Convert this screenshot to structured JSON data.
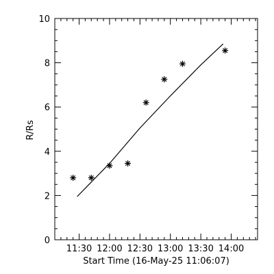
{
  "chart_data": {
    "type": "scatter",
    "xlabel": "Start Time (16-May-25 11:06:07)",
    "ylabel": "R/Rs",
    "xlim": [
      "11:06",
      "14:26"
    ],
    "ylim": [
      0,
      10
    ],
    "grid": false,
    "x_ticks": [
      "11:30",
      "12:00",
      "12:30",
      "13:00",
      "13:30",
      "14:00"
    ],
    "y_ticks": [
      "0",
      "2",
      "4",
      "6",
      "8",
      "10"
    ],
    "series": [
      {
        "type": "scatter",
        "marker": "asterisk",
        "x": [
          "11:24",
          "11:42",
          "12:00",
          "12:18",
          "12:36",
          "12:54",
          "13:12",
          "13:54"
        ],
        "y": [
          2.8,
          2.8,
          3.35,
          3.45,
          6.2,
          7.25,
          7.95,
          8.55
        ]
      },
      {
        "type": "line",
        "x": [
          "11:28",
          "12:00",
          "12:30",
          "13:00",
          "13:30",
          "13:52"
        ],
        "y": [
          1.95,
          3.45,
          5.05,
          6.5,
          7.9,
          8.85
        ]
      }
    ],
    "colors": {
      "axes": "#000000",
      "background": "#ffffff"
    }
  }
}
